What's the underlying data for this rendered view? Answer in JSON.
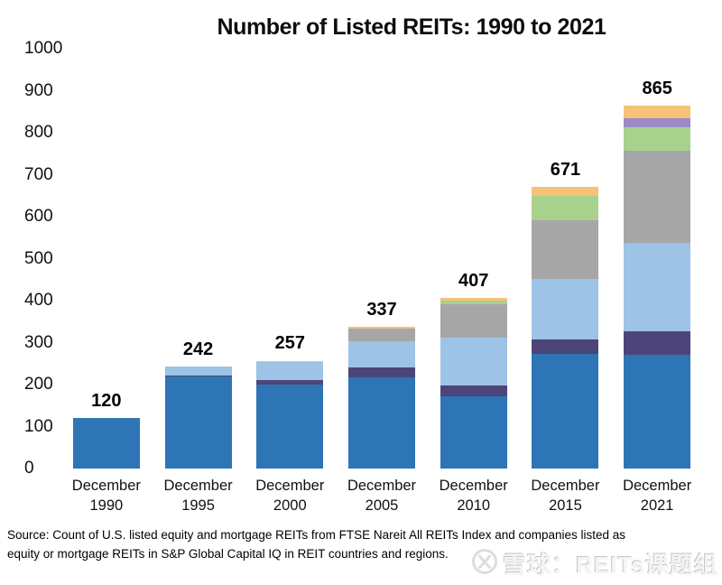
{
  "title": "Number of Listed REITs: 1990 to 2021",
  "source_lines": {
    "0": "Source: Count of U.S. listed equity and mortgage REITs from FTSE Nareit All REITs Index and companies listed as",
    "1": "equity or mortgage REITs in S&P Global Capital IQ in REIT countries and regions."
  },
  "watermark": {
    "text": "雪球：REITs课题组"
  },
  "colors": {
    "background": "#ffffff",
    "blue": "#2E75B6",
    "dark_purple": "#4D4579",
    "light_blue": "#9DC3E6",
    "gray": "#A6A6A6",
    "green": "#A9D18E",
    "lavender": "#9C8AC8",
    "orange": "#F5C277"
  },
  "chart_data": {
    "type": "bar",
    "stacked": true,
    "title": "Number of Listed REITs: 1990 to 2021",
    "categories": [
      [
        "December",
        "1990"
      ],
      [
        "December",
        "1995"
      ],
      [
        "December",
        "2000"
      ],
      [
        "December",
        "2005"
      ],
      [
        "December",
        "2010"
      ],
      [
        "December",
        "2015"
      ],
      [
        "December",
        "2021"
      ]
    ],
    "totals": [
      120,
      242,
      257,
      337,
      407,
      671,
      865
    ],
    "series": [
      {
        "name": "blue",
        "color": "#2E75B6",
        "values": [
          120,
          219,
          199,
          217,
          172,
          273,
          271
        ]
      },
      {
        "name": "dark-purple",
        "color": "#4D4579",
        "values": [
          0,
          3,
          11,
          24,
          26,
          35,
          56
        ]
      },
      {
        "name": "light-blue",
        "color": "#9DC3E6",
        "values": [
          0,
          20,
          44,
          62,
          114,
          144,
          210
        ]
      },
      {
        "name": "gray",
        "color": "#A6A6A6",
        "values": [
          0,
          0,
          0,
          30,
          79,
          139,
          220
        ]
      },
      {
        "name": "green",
        "color": "#A9D18E",
        "values": [
          0,
          0,
          0,
          0,
          10,
          58,
          56
        ]
      },
      {
        "name": "lavender",
        "color": "#9C8AC8",
        "values": [
          0,
          0,
          0,
          0,
          0,
          0,
          21
        ]
      },
      {
        "name": "orange",
        "color": "#F5C277",
        "values": [
          0,
          0,
          3,
          4,
          6,
          22,
          31
        ]
      }
    ],
    "xlabel": "",
    "ylabel": "",
    "y_axis": {
      "min": 0,
      "max": 1000,
      "step": 100,
      "ticks": [
        0,
        100,
        200,
        300,
        400,
        500,
        600,
        700,
        800,
        900,
        1000
      ]
    },
    "grid": false,
    "legend": "none",
    "data_labels": "total above each bar"
  }
}
